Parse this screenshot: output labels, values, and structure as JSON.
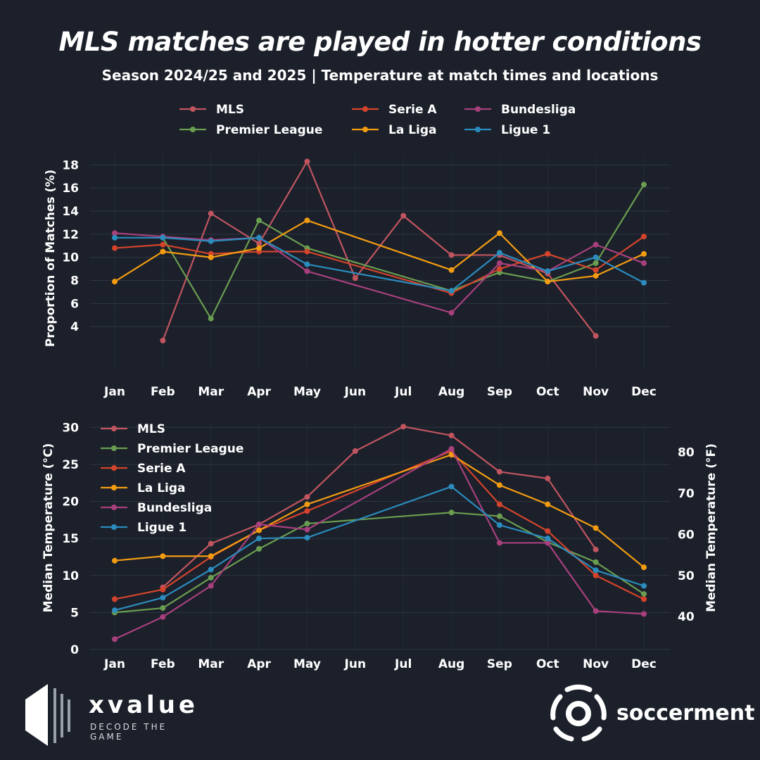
{
  "header": {
    "title": "MLS matches are played in hotter conditions",
    "subtitle": "Season 2024/25 and 2025 | Temperature at match times and locations"
  },
  "colors": {
    "background": "#1b202a",
    "grid": "#2f3642",
    "MLS": "#c05560",
    "Premier League": "#6a9d50",
    "Serie A": "#d4442c",
    "La Liga": "#f39c12",
    "Bundesliga": "#a8407e",
    "Ligue 1": "#2b8cbe"
  },
  "chart_data": [
    {
      "type": "line",
      "title": "",
      "xlabel": "",
      "ylabel": "Proportion of Matches (%)",
      "ylim": [
        2,
        19
      ],
      "yticks": [
        4,
        6,
        8,
        10,
        12,
        14,
        16,
        18
      ],
      "grid": true,
      "legend_position": "top",
      "categories": [
        "Jan",
        "Feb",
        "Mar",
        "Apr",
        "May",
        "Jun",
        "Jul",
        "Aug",
        "Sep",
        "Oct",
        "Nov",
        "Dec"
      ],
      "series": [
        {
          "name": "MLS",
          "values": [
            null,
            2.8,
            13.8,
            11.2,
            18.3,
            8.2,
            13.6,
            10.2,
            10.2,
            8.6,
            3.2,
            null
          ]
        },
        {
          "name": "Premier League",
          "values": [
            null,
            11.7,
            4.7,
            13.2,
            10.8,
            null,
            null,
            7.1,
            8.7,
            7.9,
            9.5,
            16.3
          ]
        },
        {
          "name": "Serie A",
          "values": [
            10.8,
            11.1,
            10.3,
            10.5,
            10.5,
            null,
            null,
            6.9,
            9.0,
            10.3,
            8.9,
            11.8
          ]
        },
        {
          "name": "La Liga",
          "values": [
            7.9,
            10.5,
            10.0,
            10.8,
            13.2,
            null,
            null,
            8.9,
            12.1,
            7.9,
            8.4,
            10.3
          ]
        },
        {
          "name": "Bundesliga",
          "values": [
            12.1,
            11.8,
            11.5,
            11.7,
            8.8,
            null,
            null,
            5.2,
            9.5,
            8.8,
            11.1,
            9.5
          ]
        },
        {
          "name": "Ligue 1",
          "values": [
            11.7,
            11.7,
            11.4,
            11.7,
            9.4,
            null,
            null,
            7.1,
            10.4,
            8.8,
            10.0,
            7.8
          ]
        }
      ]
    },
    {
      "type": "line",
      "title": "",
      "xlabel": "",
      "ylabel": "Median Temperature (°C)",
      "ylabel_right": "Median Temperature (°F)",
      "ylim": [
        0,
        30.5
      ],
      "yticks": [
        0,
        5,
        10,
        15,
        20,
        25,
        30
      ],
      "yticks_right": [
        40,
        50,
        60,
        70,
        80
      ],
      "grid": true,
      "legend_position": "top-left",
      "categories": [
        "Jan",
        "Feb",
        "Mar",
        "Apr",
        "May",
        "Jun",
        "Jul",
        "Aug",
        "Sep",
        "Oct",
        "Nov",
        "Dec"
      ],
      "series": [
        {
          "name": "MLS",
          "values": [
            null,
            8.4,
            14.3,
            16.9,
            20.6,
            26.8,
            30.1,
            28.9,
            24.0,
            23.1,
            13.5,
            null
          ]
        },
        {
          "name": "Premier League",
          "values": [
            5.0,
            5.6,
            9.7,
            13.6,
            17.0,
            null,
            null,
            18.5,
            18.0,
            14.5,
            11.8,
            7.5
          ]
        },
        {
          "name": "Serie A",
          "values": [
            6.8,
            8.1,
            12.5,
            16.1,
            18.7,
            null,
            null,
            26.8,
            19.6,
            16.0,
            10.0,
            6.8
          ]
        },
        {
          "name": "La Liga",
          "values": [
            12.0,
            12.6,
            12.6,
            16.1,
            19.6,
            null,
            null,
            26.3,
            22.2,
            19.6,
            16.4,
            11.1
          ]
        },
        {
          "name": "Bundesliga",
          "values": [
            1.4,
            4.4,
            8.6,
            16.9,
            16.2,
            null,
            null,
            27.1,
            14.4,
            14.4,
            5.2,
            4.8
          ]
        },
        {
          "name": "Ligue 1",
          "values": [
            5.3,
            7.0,
            10.8,
            15.0,
            15.1,
            null,
            null,
            22.0,
            16.8,
            15.0,
            10.7,
            8.6
          ]
        }
      ]
    }
  ],
  "branding": {
    "left": {
      "name": "xvalue",
      "tagline": "DECODE THE GAME"
    },
    "right": {
      "name": "soccerment"
    }
  }
}
